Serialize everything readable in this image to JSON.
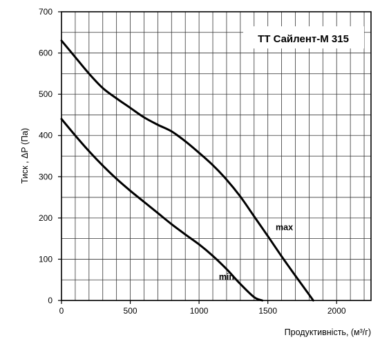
{
  "chart_data": {
    "type": "line",
    "title": "ТТ Сайлент-М 315",
    "ylabel": "Тиск , ΔP (Па)",
    "xlabel": "Продуктивність, (м³/г)",
    "xlim": [
      0,
      2250
    ],
    "ylim": [
      0,
      700
    ],
    "x_ticks": [
      "0",
      "500",
      "1000",
      "1500",
      "2000"
    ],
    "y_ticks": [
      "0",
      "100",
      "200",
      "300",
      "400",
      "500",
      "600",
      "700"
    ],
    "grid": true,
    "series": [
      {
        "name": "max",
        "color": "#000000",
        "points": [
          [
            0,
            630
          ],
          [
            100,
            590
          ],
          [
            200,
            550
          ],
          [
            300,
            515
          ],
          [
            400,
            490
          ],
          [
            500,
            467
          ],
          [
            600,
            444
          ],
          [
            700,
            426
          ],
          [
            800,
            410
          ],
          [
            900,
            386
          ],
          [
            1000,
            358
          ],
          [
            1100,
            328
          ],
          [
            1200,
            293
          ],
          [
            1300,
            252
          ],
          [
            1400,
            204
          ],
          [
            1500,
            156
          ],
          [
            1600,
            107
          ],
          [
            1700,
            60
          ],
          [
            1800,
            14
          ],
          [
            1830,
            0
          ]
        ]
      },
      {
        "name": "min",
        "color": "#000000",
        "points": [
          [
            0,
            440
          ],
          [
            100,
            400
          ],
          [
            200,
            362
          ],
          [
            300,
            327
          ],
          [
            400,
            295
          ],
          [
            500,
            266
          ],
          [
            600,
            239
          ],
          [
            700,
            212
          ],
          [
            800,
            185
          ],
          [
            900,
            160
          ],
          [
            1000,
            136
          ],
          [
            1100,
            108
          ],
          [
            1200,
            76
          ],
          [
            1300,
            40
          ],
          [
            1400,
            8
          ],
          [
            1460,
            0
          ]
        ]
      }
    ]
  }
}
